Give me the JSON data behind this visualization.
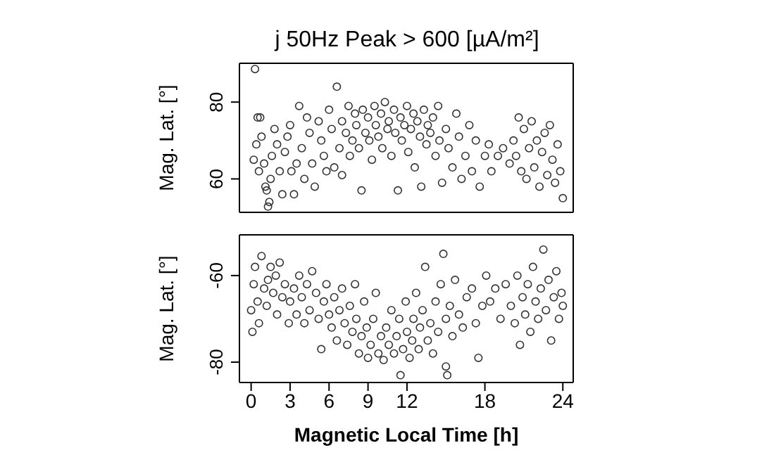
{
  "chart_data": [
    {
      "type": "scatter",
      "title": "j 50Hz Peak > 600 [µA/m²]",
      "ylabel": "Mag. Lat. [°]",
      "xlim": [
        -0.9,
        24.8
      ],
      "ylim": [
        51.3,
        90.1
      ],
      "yticks": [
        60,
        80
      ],
      "tick_labels": "y",
      "marker": "circle",
      "grid": false,
      "legend": false,
      "series": [
        {
          "color": "#333333",
          "x": [
            0.3,
            0.2,
            0.4,
            0.5,
            0.7,
            0.6,
            0.8,
            1,
            1.1,
            1.2,
            1.3,
            1.4,
            1.5,
            1.6,
            1.8,
            2,
            2.2,
            2.4,
            2.6,
            2.8,
            3,
            3.1,
            3.3,
            3.5,
            3.7,
            3.9,
            4.1,
            4.3,
            4.5,
            4.7,
            4.9,
            5.2,
            5.4,
            5.6,
            5.8,
            6,
            6.2,
            6.4,
            6.6,
            6.8,
            7,
            7,
            7.3,
            7.5,
            7.6,
            7.8,
            8,
            8.1,
            8.3,
            8.5,
            8.6,
            8.8,
            9,
            9.1,
            9.3,
            9.5,
            9.6,
            9.8,
            10,
            10.1,
            10.3,
            10.5,
            10.6,
            10.8,
            11,
            11.1,
            11.3,
            11.5,
            11.6,
            11.8,
            12,
            12.1,
            12.3,
            12.5,
            12.6,
            12.8,
            13,
            13.1,
            13.3,
            13.5,
            13.6,
            13.8,
            14,
            14.2,
            14.4,
            14.5,
            14.7,
            15,
            15.2,
            15.5,
            15.8,
            16,
            16.2,
            16.5,
            16.8,
            17,
            17.3,
            17.6,
            18,
            18.3,
            18.5,
            19,
            19.4,
            19.9,
            20.2,
            20.4,
            20.6,
            20.8,
            21,
            21.2,
            21.4,
            21.6,
            21.8,
            22,
            22.2,
            22.4,
            22.6,
            22.8,
            23,
            23.2,
            23.4,
            23.6,
            23.8,
            24
          ],
          "values": [
            88.6,
            65,
            69,
            76,
            76,
            62,
            71,
            64,
            58,
            57,
            52.8,
            54,
            60,
            66,
            73,
            69,
            62,
            56,
            67,
            71,
            74,
            62,
            56,
            64,
            79,
            68,
            60,
            76,
            72,
            64,
            58,
            75,
            70,
            66,
            62,
            78,
            73,
            63,
            84,
            68,
            75,
            61,
            72,
            79,
            66,
            70,
            77,
            74,
            68,
            57,
            78,
            72,
            76,
            70,
            65,
            79,
            74,
            71,
            77,
            68,
            80,
            73,
            75,
            66,
            78,
            72,
            57,
            76,
            70,
            74,
            79,
            67,
            73,
            77,
            63,
            75,
            71,
            58,
            78,
            69,
            74,
            72,
            76,
            66,
            79,
            70,
            59,
            73,
            68,
            63,
            77,
            71,
            60,
            66,
            74,
            62,
            70,
            58,
            66,
            69,
            62,
            66,
            68,
            64,
            70,
            66,
            76,
            62,
            73,
            60,
            68,
            75,
            63,
            70,
            58,
            67,
            72,
            61,
            74,
            65,
            59,
            69,
            62,
            55
          ]
        }
      ]
    },
    {
      "type": "scatter",
      "xlabel": "Magnetic Local Time [h]",
      "ylabel": "Mag. Lat. [°]",
      "xlim": [
        -0.9,
        24.8
      ],
      "xticks": [
        0,
        3,
        6,
        9,
        12,
        18,
        24
      ],
      "ylim": [
        -84.7,
        -50.6
      ],
      "yticks": [
        -80,
        -60
      ],
      "marker": "circle",
      "grid": false,
      "legend": false,
      "series": [
        {
          "color": "#333333",
          "x": [
            0,
            0.1,
            0.2,
            0.3,
            0.5,
            0.6,
            0.8,
            1,
            1.2,
            1.3,
            1.5,
            1.7,
            1.9,
            2,
            2.2,
            2.4,
            2.6,
            2.9,
            3,
            3.3,
            3.5,
            3.7,
            3.9,
            4.1,
            4.3,
            4.5,
            4.7,
            5,
            5.2,
            5.4,
            5.6,
            5.8,
            6,
            6.2,
            6.4,
            6.6,
            6.8,
            7,
            7.2,
            7.4,
            7.6,
            7.8,
            8,
            8.1,
            8.3,
            8.5,
            8.7,
            8.9,
            9,
            9.2,
            9.4,
            9.6,
            9.8,
            10,
            10.2,
            10.4,
            10.6,
            10.8,
            11,
            11.2,
            11.4,
            11.5,
            11.7,
            11.9,
            12,
            12.2,
            12.4,
            12.5,
            12.7,
            12.9,
            13,
            13.2,
            13.4,
            13.6,
            13.8,
            14,
            14.2,
            14.4,
            14.6,
            14.8,
            15,
            15,
            15.1,
            15.3,
            15.5,
            15.7,
            16,
            16.3,
            16.6,
            17,
            17.3,
            17.5,
            17.8,
            18.1,
            18.4,
            18.8,
            19.2,
            19.6,
            20,
            20.3,
            20.5,
            20.7,
            20.9,
            21.1,
            21.3,
            21.5,
            21.7,
            21.9,
            22.1,
            22.3,
            22.5,
            22.7,
            22.9,
            23.1,
            23.3,
            23.5,
            23.7,
            23.9,
            24
          ],
          "values": [
            -68,
            -73,
            -62,
            -58,
            -66,
            -71,
            -55.5,
            -63,
            -67,
            -61,
            -58,
            -64,
            -60,
            -69,
            -57,
            -65,
            -62,
            -71,
            -66,
            -63,
            -69,
            -60,
            -65,
            -71,
            -62,
            -68,
            -59,
            -64,
            -70,
            -77,
            -66,
            -62,
            -69,
            -72,
            -65,
            -75,
            -68,
            -63,
            -71,
            -76,
            -67,
            -73,
            -62,
            -70,
            -78,
            -74,
            -66,
            -72,
            -79,
            -76,
            -70,
            -64,
            -78,
            -74,
            -79.5,
            -72,
            -76,
            -68,
            -78,
            -74,
            -70,
            -83,
            -77,
            -66,
            -73,
            -79,
            -75,
            -70,
            -64,
            -77,
            -72,
            -68,
            -58,
            -75,
            -71,
            -78,
            -66,
            -73,
            -62,
            -55,
            -70,
            -81,
            -83,
            -67,
            -74,
            -61,
            -69,
            -72,
            -65,
            -63,
            -71,
            -79,
            -67,
            -60,
            -66,
            -63,
            -70,
            -62,
            -67,
            -71,
            -60,
            -76,
            -65,
            -69,
            -62,
            -73,
            -58,
            -66,
            -70,
            -63,
            -54,
            -68,
            -61,
            -75,
            -65,
            -59,
            -70,
            -64,
            -67
          ]
        }
      ]
    }
  ]
}
